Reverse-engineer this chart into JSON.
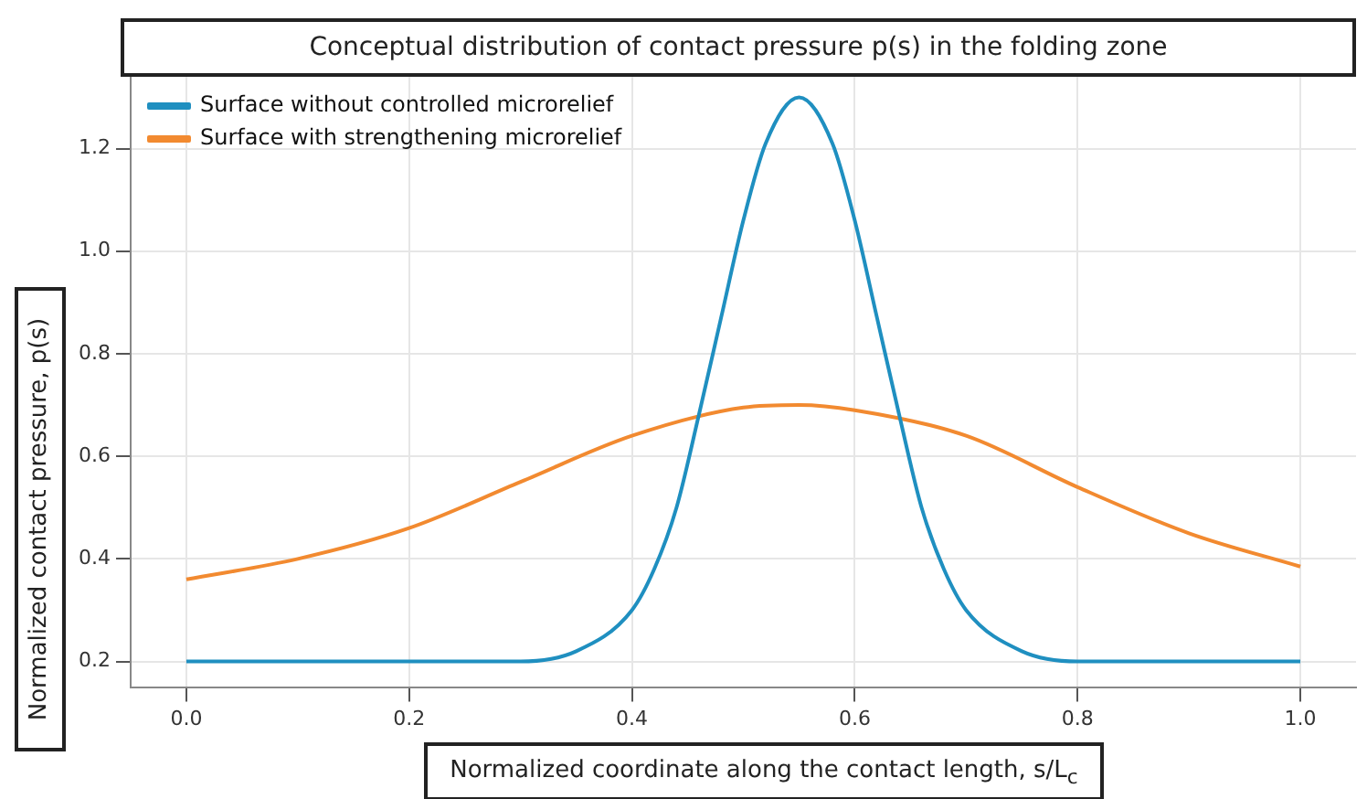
{
  "chart_data": {
    "type": "line",
    "title": "Conceptual distribution of contact pressure p(s) in the folding zone",
    "xlabel": "Normalized coordinate along the contact length, s/L$_{c}$",
    "ylabel": "Normalized contact pressure, p(s)",
    "xlim": [
      -0.05,
      1.05
    ],
    "ylim": [
      0.15,
      1.34
    ],
    "xticks": [
      {
        "value": 0,
        "label": "0.0"
      },
      0.2,
      0.4,
      0.6,
      0.8,
      {
        "value": 1,
        "label": "1.0"
      }
    ],
    "yticks": [
      0.2,
      0.4,
      0.6,
      0.8,
      {
        "value": 1,
        "label": "1.0"
      },
      1.2
    ],
    "grid": true,
    "legend": "top left",
    "marker": "none",
    "line_style": "solid",
    "series": [
      {
        "name": "Surface without controlled microrelief",
        "color": "#1f8fc0",
        "x": [
          0,
          0.1,
          0.2,
          0.3,
          0.35,
          0.4,
          0.42,
          0.44,
          0.46,
          0.48,
          0.5,
          0.52,
          0.55,
          0.58,
          0.6,
          0.62,
          0.64,
          0.66,
          0.68,
          0.7,
          0.75,
          0.8,
          0.9,
          1.0
        ],
        "values": [
          0.2,
          0.2,
          0.2,
          0.2,
          0.22,
          0.3,
          0.38,
          0.5,
          0.68,
          0.87,
          1.06,
          1.21,
          1.3,
          1.21,
          1.06,
          0.87,
          0.68,
          0.5,
          0.38,
          0.3,
          0.22,
          0.2,
          0.2,
          0.2
        ]
      },
      {
        "name": "Surface with strengthening microrelief",
        "color": "#f28a30",
        "x": [
          0,
          0.1,
          0.2,
          0.3,
          0.4,
          0.5,
          0.55,
          0.6,
          0.7,
          0.8,
          0.9,
          1.0
        ],
        "values": [
          0.36,
          0.4,
          0.46,
          0.55,
          0.64,
          0.695,
          0.7,
          0.69,
          0.64,
          0.54,
          0.45,
          0.385
        ]
      }
    ]
  }
}
